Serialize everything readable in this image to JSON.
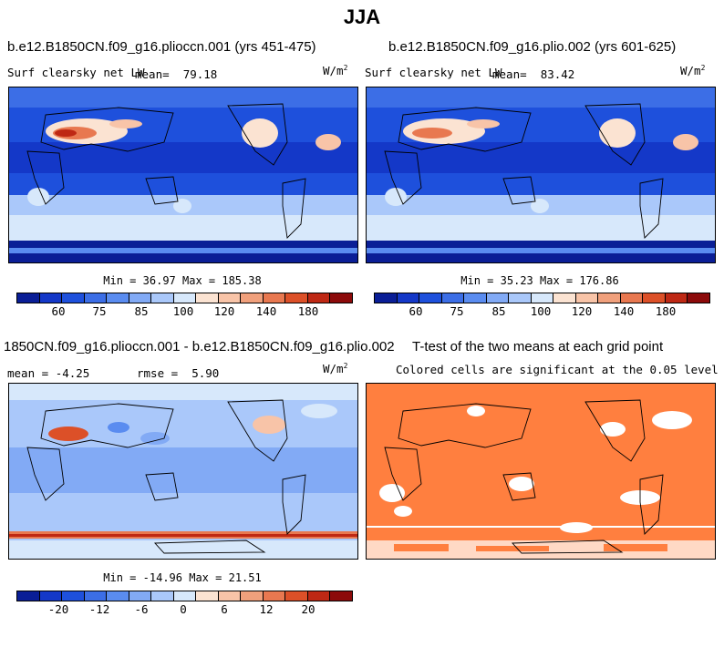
{
  "title": "JJA",
  "chart_data": [
    {
      "type": "heatmap",
      "panel": "top-left",
      "title": "b.e12.B1850CN.f09_g16.plioccn.001 (yrs 451-475)",
      "variable": "Surf clearsky net LW",
      "mean_label": "mean=",
      "mean": "79.18",
      "units": "W/m",
      "units_exp": "2",
      "min_label": "Min =",
      "min": "36.97",
      "max_label": "Max =",
      "max": "185.38",
      "colorbar_levels": [
        "60",
        "75",
        "85",
        "100",
        "120",
        "140",
        "180"
      ]
    },
    {
      "type": "heatmap",
      "panel": "top-right",
      "title": "b.e12.B1850CN.f09_g16.plio.002 (yrs 601-625)",
      "variable": "Surf clearsky net LW",
      "mean_label": "mean=",
      "mean": "83.42",
      "units": "W/m",
      "units_exp": "2",
      "min_label": "Min =",
      "min": "35.23",
      "max_label": "Max =",
      "max": "176.86",
      "colorbar_levels": [
        "60",
        "75",
        "85",
        "100",
        "120",
        "140",
        "180"
      ]
    },
    {
      "type": "heatmap",
      "panel": "bottom-left",
      "title": "1850CN.f09_g16.plioccn.001 - b.e12.B1850CN.f09_g16.plio.002",
      "mean_label": "mean =",
      "mean": "-4.25",
      "rmse_label": "rmse =",
      "rmse": "5.90",
      "units": "W/m",
      "units_exp": "2",
      "min_label": "Min =",
      "min": "-14.96",
      "max_label": "Max =",
      "max": "21.51",
      "colorbar_levels": [
        "-20",
        "-12",
        "-6",
        "0",
        "6",
        "12",
        "20"
      ]
    },
    {
      "type": "heatmap",
      "panel": "bottom-right",
      "title": "T-test of the two means at each grid point",
      "subtitle": "Colored cells are significant at the 0.05 level",
      "significant_color": "#ff7f3f"
    }
  ],
  "colors": {
    "top_colorbar": [
      "#0a1e96",
      "#1438c8",
      "#1e50dc",
      "#3c6ee6",
      "#5a8cf0",
      "#82aaf5",
      "#aac8fa",
      "#d7e8fb",
      "#fbe3d2",
      "#f8c4a8",
      "#f0a07c",
      "#e87850",
      "#dc5028",
      "#be2814",
      "#8c0a0a"
    ],
    "diff_colorbar": [
      "#0a1e96",
      "#1438c8",
      "#1e50dc",
      "#3c6ee6",
      "#5a8cf0",
      "#82aaf5",
      "#aac8fa",
      "#d7e8fb",
      "#fbe3d2",
      "#f8c4a8",
      "#f0a07c",
      "#e87850",
      "#dc5028",
      "#be2814",
      "#8c0a0a"
    ]
  }
}
